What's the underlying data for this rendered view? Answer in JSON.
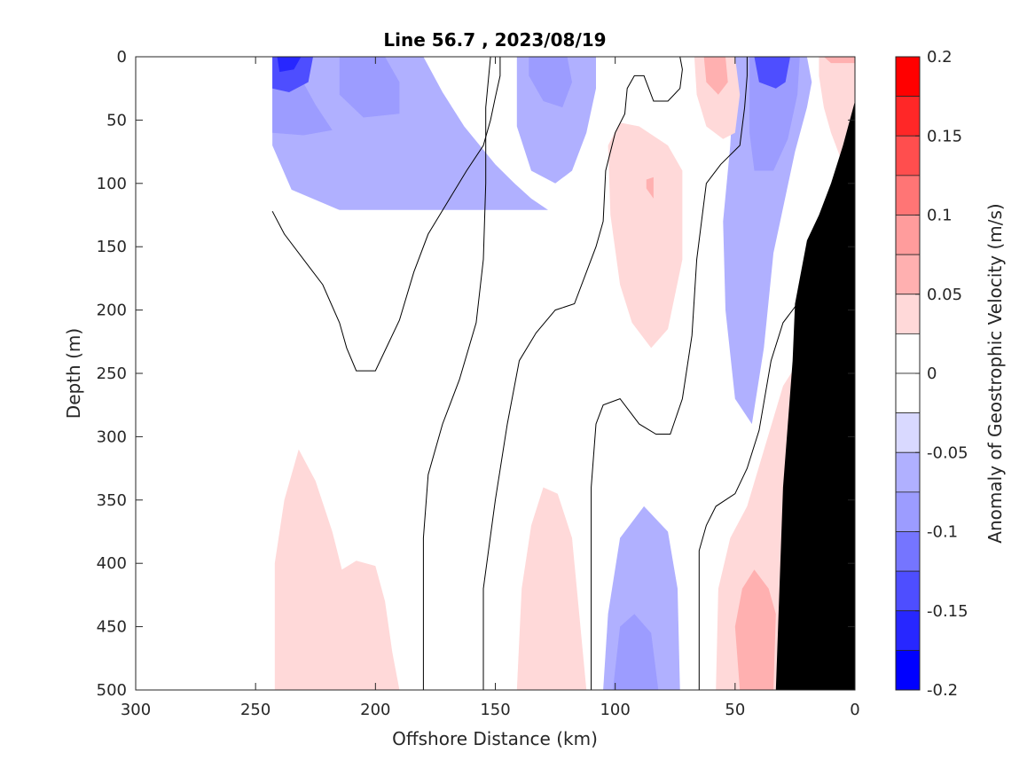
{
  "chart_data": {
    "type": "heatmap",
    "title": "Line 56.7 , 2023/08/19",
    "xlabel": "Offshore Distance (km)",
    "ylabel": "Depth (m)",
    "colorbar_label": "Anomaly of Geostrophic Velocity (m/s)",
    "xlim": [
      300,
      0
    ],
    "ylim": [
      0,
      500
    ],
    "x_ticks": [
      300,
      250,
      200,
      150,
      100,
      50,
      0
    ],
    "y_ticks": [
      0,
      50,
      100,
      150,
      200,
      250,
      300,
      350,
      400,
      450,
      500
    ],
    "colorbar_range": [
      -0.2,
      0.2
    ],
    "colorbar_ticks": [
      0.2,
      0.15,
      0.1,
      0.05,
      0,
      -0.05,
      -0.1,
      -0.15,
      -0.2
    ],
    "colorbar_tick_labels": [
      "0.2",
      "0.15",
      "0.1",
      "0.05",
      "0",
      "-0.05",
      "-0.1",
      "-0.15",
      "-0.2"
    ],
    "levels": [
      {
        "from": 0.175,
        "to": 0.2,
        "color": "#ff0000"
      },
      {
        "from": 0.15,
        "to": 0.175,
        "color": "#ff2727"
      },
      {
        "from": 0.125,
        "to": 0.15,
        "color": "#ff4e4e"
      },
      {
        "from": 0.1,
        "to": 0.125,
        "color": "#ff7575"
      },
      {
        "from": 0.075,
        "to": 0.1,
        "color": "#ff9c9c"
      },
      {
        "from": 0.05,
        "to": 0.075,
        "color": "#ffb0b0"
      },
      {
        "from": 0.025,
        "to": 0.05,
        "color": "#ffd9d9"
      },
      {
        "from": 0,
        "to": 0.025,
        "color": "#ffffff"
      },
      {
        "from": -0.025,
        "to": 0,
        "color": "#ffffff"
      },
      {
        "from": -0.05,
        "to": -0.025,
        "color": "#d9d9ff"
      },
      {
        "from": -0.075,
        "to": -0.05,
        "color": "#b0b0ff"
      },
      {
        "from": -0.1,
        "to": -0.075,
        "color": "#9c9cff"
      },
      {
        "from": -0.125,
        "to": -0.1,
        "color": "#7575ff"
      },
      {
        "from": -0.15,
        "to": -0.125,
        "color": "#4e4eff"
      },
      {
        "from": -0.175,
        "to": -0.15,
        "color": "#2727ff"
      },
      {
        "from": -0.2,
        "to": -0.175,
        "color": "#0000ff"
      }
    ],
    "colors": {
      "neg1": "#d9d9ff",
      "neg2": "#b0b0ff",
      "neg3": "#9c9cff",
      "neg4": "#7575ff",
      "neg5": "#4e4eff",
      "pos1": "#ffd9d9",
      "pos2": "#ffb0b0",
      "pos3": "#ff9c9c",
      "bottom": "#000000",
      "zero_contour": "#000000"
    },
    "regions": [
      {
        "name": "neg-surface-offshore",
        "level": -0.05,
        "points": [
          [
            243,
            0
          ],
          [
            180,
            0
          ],
          [
            172,
            28
          ],
          [
            163,
            55
          ],
          [
            150,
            85
          ],
          [
            142,
            100
          ],
          [
            135,
            112
          ],
          [
            128,
            121
          ],
          [
            215,
            121
          ],
          [
            235,
            105
          ],
          [
            243,
            70
          ]
        ]
      },
      {
        "name": "neg-surface-offshore-core",
        "level": -0.075,
        "points": [
          [
            243,
            0
          ],
          [
            236,
            0
          ],
          [
            225,
            38
          ],
          [
            218,
            58
          ],
          [
            230,
            62
          ],
          [
            243,
            60
          ]
        ]
      },
      {
        "name": "neg-surface-offshore-core2",
        "level": -0.075,
        "points": [
          [
            215,
            0
          ],
          [
            196,
            0
          ],
          [
            190,
            20
          ],
          [
            190,
            45
          ],
          [
            205,
            48
          ],
          [
            215,
            30
          ]
        ]
      },
      {
        "name": "neg-surface-offshore-core3",
        "level": -0.125,
        "points": [
          [
            243,
            0
          ],
          [
            226,
            0
          ],
          [
            228,
            20
          ],
          [
            236,
            28
          ],
          [
            243,
            25
          ]
        ]
      },
      {
        "name": "neg-surface-offshore-core4",
        "level": -0.15,
        "points": [
          [
            241,
            0
          ],
          [
            231,
            0
          ],
          [
            234,
            10
          ],
          [
            240,
            12
          ]
        ]
      },
      {
        "name": "neg-surface-130",
        "level": -0.05,
        "points": [
          [
            141,
            0
          ],
          [
            108,
            0
          ],
          [
            108,
            25
          ],
          [
            112,
            60
          ],
          [
            118,
            90
          ],
          [
            125,
            100
          ],
          [
            135,
            90
          ],
          [
            141,
            55
          ]
        ]
      },
      {
        "name": "neg-surface-130-core",
        "level": -0.075,
        "points": [
          [
            136,
            0
          ],
          [
            120,
            0
          ],
          [
            118,
            20
          ],
          [
            122,
            40
          ],
          [
            130,
            35
          ],
          [
            136,
            15
          ]
        ]
      },
      {
        "name": "neg-surface-40",
        "level": -0.05,
        "points": [
          [
            50,
            0
          ],
          [
            20,
            0
          ],
          [
            18,
            20
          ],
          [
            20,
            40
          ],
          [
            25,
            75
          ],
          [
            34,
            155
          ],
          [
            38,
            230
          ],
          [
            43,
            290
          ],
          [
            50,
            270
          ],
          [
            54,
            200
          ],
          [
            55,
            130
          ],
          [
            52,
            70
          ]
        ]
      },
      {
        "name": "neg-surface-40-core",
        "level": -0.075,
        "points": [
          [
            44,
            0
          ],
          [
            23,
            0
          ],
          [
            24,
            30
          ],
          [
            28,
            65
          ],
          [
            34,
            90
          ],
          [
            42,
            90
          ],
          [
            44,
            60
          ]
        ]
      },
      {
        "name": "neg-surface-40-core2",
        "level": -0.125,
        "points": [
          [
            42,
            0
          ],
          [
            27,
            0
          ],
          [
            29,
            20
          ],
          [
            33,
            25
          ],
          [
            40,
            20
          ]
        ]
      },
      {
        "name": "neg-deep-95",
        "level": -0.05,
        "points": [
          [
            105,
            500
          ],
          [
            103,
            440
          ],
          [
            98,
            380
          ],
          [
            88,
            355
          ],
          [
            78,
            375
          ],
          [
            74,
            420
          ],
          [
            73,
            500
          ]
        ]
      },
      {
        "name": "neg-deep-95-core",
        "level": -0.075,
        "points": [
          [
            101,
            500
          ],
          [
            98,
            450
          ],
          [
            92,
            440
          ],
          [
            85,
            455
          ],
          [
            82,
            500
          ]
        ]
      },
      {
        "name": "pos-surface-85",
        "level": 0.05,
        "points": [
          [
            103,
            70
          ],
          [
            102,
            125
          ],
          [
            98,
            180
          ],
          [
            93,
            210
          ],
          [
            85,
            230
          ],
          [
            78,
            215
          ],
          [
            72,
            160
          ],
          [
            72,
            90
          ],
          [
            78,
            70
          ],
          [
            90,
            55
          ],
          [
            98,
            52
          ]
        ]
      },
      {
        "name": "pos-surface-85-core",
        "level": 0.075,
        "points": [
          [
            87,
            97
          ],
          [
            84,
            95
          ],
          [
            84,
            112
          ],
          [
            87,
            104
          ]
        ]
      },
      {
        "name": "pos-surface-55",
        "level": 0.05,
        "points": [
          [
            67,
            0
          ],
          [
            50,
            0
          ],
          [
            48,
            30
          ],
          [
            50,
            60
          ],
          [
            55,
            65
          ],
          [
            62,
            55
          ],
          [
            66,
            30
          ]
        ]
      },
      {
        "name": "pos-surface-55-core",
        "level": 0.075,
        "points": [
          [
            63,
            0
          ],
          [
            54,
            0
          ],
          [
            53,
            20
          ],
          [
            57,
            30
          ],
          [
            62,
            20
          ]
        ]
      },
      {
        "name": "pos-surface-10",
        "level": 0.05,
        "points": [
          [
            15,
            0
          ],
          [
            0,
            0
          ],
          [
            0,
            60
          ],
          [
            5,
            85
          ],
          [
            10,
            60
          ],
          [
            13,
            40
          ],
          [
            15,
            15
          ]
        ]
      },
      {
        "name": "pos-surface-10-core",
        "level": 0.075,
        "points": [
          [
            13,
            0
          ],
          [
            0,
            0
          ],
          [
            0,
            5
          ],
          [
            10,
            5
          ]
        ]
      },
      {
        "name": "pos-deep-215",
        "level": 0.05,
        "points": [
          [
            242,
            500
          ],
          [
            242,
            400
          ],
          [
            238,
            350
          ],
          [
            232,
            310
          ],
          [
            225,
            335
          ],
          [
            218,
            375
          ],
          [
            214,
            405
          ],
          [
            208,
            398
          ],
          [
            200,
            402
          ],
          [
            196,
            430
          ],
          [
            193,
            470
          ],
          [
            190,
            500
          ]
        ]
      },
      {
        "name": "pos-deep-130",
        "level": 0.05,
        "points": [
          [
            141,
            500
          ],
          [
            139,
            420
          ],
          [
            135,
            370
          ],
          [
            130,
            340
          ],
          [
            124,
            345
          ],
          [
            118,
            380
          ],
          [
            115,
            440
          ],
          [
            112,
            500
          ]
        ]
      },
      {
        "name": "pos-deep-40",
        "level": 0.05,
        "points": [
          [
            58,
            500
          ],
          [
            57,
            420
          ],
          [
            52,
            380
          ],
          [
            45,
            355
          ],
          [
            30,
            260
          ],
          [
            25,
            245
          ],
          [
            22,
            300
          ],
          [
            28,
            500
          ]
        ]
      },
      {
        "name": "pos-deep-40-core",
        "level": 0.075,
        "points": [
          [
            48,
            500
          ],
          [
            50,
            450
          ],
          [
            47,
            420
          ],
          [
            42,
            405
          ],
          [
            36,
            420
          ],
          [
            33,
            440
          ],
          [
            34,
            500
          ]
        ]
      }
    ],
    "zero_contours": [
      {
        "name": "zero-contour-offshore-lobe",
        "points": [
          [
            243,
            122
          ],
          [
            238,
            140
          ],
          [
            228,
            165
          ],
          [
            222,
            180
          ],
          [
            215,
            210
          ],
          [
            212,
            230
          ],
          [
            208,
            248
          ],
          [
            200,
            248
          ],
          [
            195,
            228
          ],
          [
            190,
            208
          ],
          [
            184,
            170
          ],
          [
            178,
            140
          ],
          [
            170,
            115
          ],
          [
            162,
            90
          ],
          [
            155,
            70
          ],
          [
            152,
            50
          ],
          [
            150,
            32
          ],
          [
            148,
            15
          ],
          [
            148,
            0
          ]
        ]
      },
      {
        "name": "zero-contour-180",
        "points": [
          [
            180,
            500
          ],
          [
            180,
            380
          ],
          [
            178,
            330
          ],
          [
            172,
            290
          ],
          [
            165,
            255
          ],
          [
            158,
            210
          ],
          [
            155,
            160
          ],
          [
            154,
            100
          ],
          [
            154,
            40
          ],
          [
            152,
            0
          ]
        ]
      },
      {
        "name": "zero-contour-155",
        "points": [
          [
            155,
            500
          ],
          [
            155,
            420
          ],
          [
            150,
            350
          ],
          [
            145,
            290
          ],
          [
            140,
            240
          ],
          [
            133,
            218
          ],
          [
            125,
            200
          ],
          [
            117,
            195
          ],
          [
            112,
            170
          ],
          [
            108,
            150
          ],
          [
            105,
            130
          ],
          [
            104,
            90
          ],
          [
            100,
            60
          ],
          [
            96,
            45
          ],
          [
            95,
            25
          ],
          [
            92,
            15
          ],
          [
            88,
            15
          ],
          [
            84,
            35
          ],
          [
            78,
            35
          ],
          [
            73,
            25
          ],
          [
            72,
            10
          ],
          [
            73,
            0
          ]
        ]
      },
      {
        "name": "zero-contour-110",
        "points": [
          [
            110,
            500
          ],
          [
            110,
            340
          ],
          [
            108,
            290
          ],
          [
            105,
            275
          ],
          [
            98,
            270
          ],
          [
            90,
            290
          ],
          [
            83,
            298
          ],
          [
            77,
            298
          ],
          [
            72,
            270
          ],
          [
            68,
            220
          ],
          [
            66,
            160
          ],
          [
            62,
            100
          ],
          [
            56,
            85
          ],
          [
            48,
            70
          ],
          [
            46,
            40
          ],
          [
            45,
            15
          ],
          [
            45,
            0
          ]
        ]
      },
      {
        "name": "zero-contour-65",
        "points": [
          [
            65,
            500
          ],
          [
            65,
            390
          ],
          [
            62,
            370
          ],
          [
            58,
            355
          ],
          [
            50,
            345
          ],
          [
            45,
            325
          ],
          [
            40,
            295
          ],
          [
            35,
            240
          ],
          [
            30,
            210
          ],
          [
            22,
            190
          ],
          [
            18,
            160
          ],
          [
            10,
            115
          ],
          [
            5,
            110
          ],
          [
            3,
            85
          ],
          [
            0,
            80
          ]
        ]
      }
    ],
    "bottom_profile": [
      [
        33,
        500
      ],
      [
        30,
        340
      ],
      [
        28,
        290
      ],
      [
        26,
        240
      ],
      [
        25,
        195
      ],
      [
        20,
        145
      ],
      [
        15,
        125
      ],
      [
        10,
        100
      ],
      [
        5,
        70
      ],
      [
        0,
        35
      ],
      [
        0,
        500
      ]
    ]
  }
}
